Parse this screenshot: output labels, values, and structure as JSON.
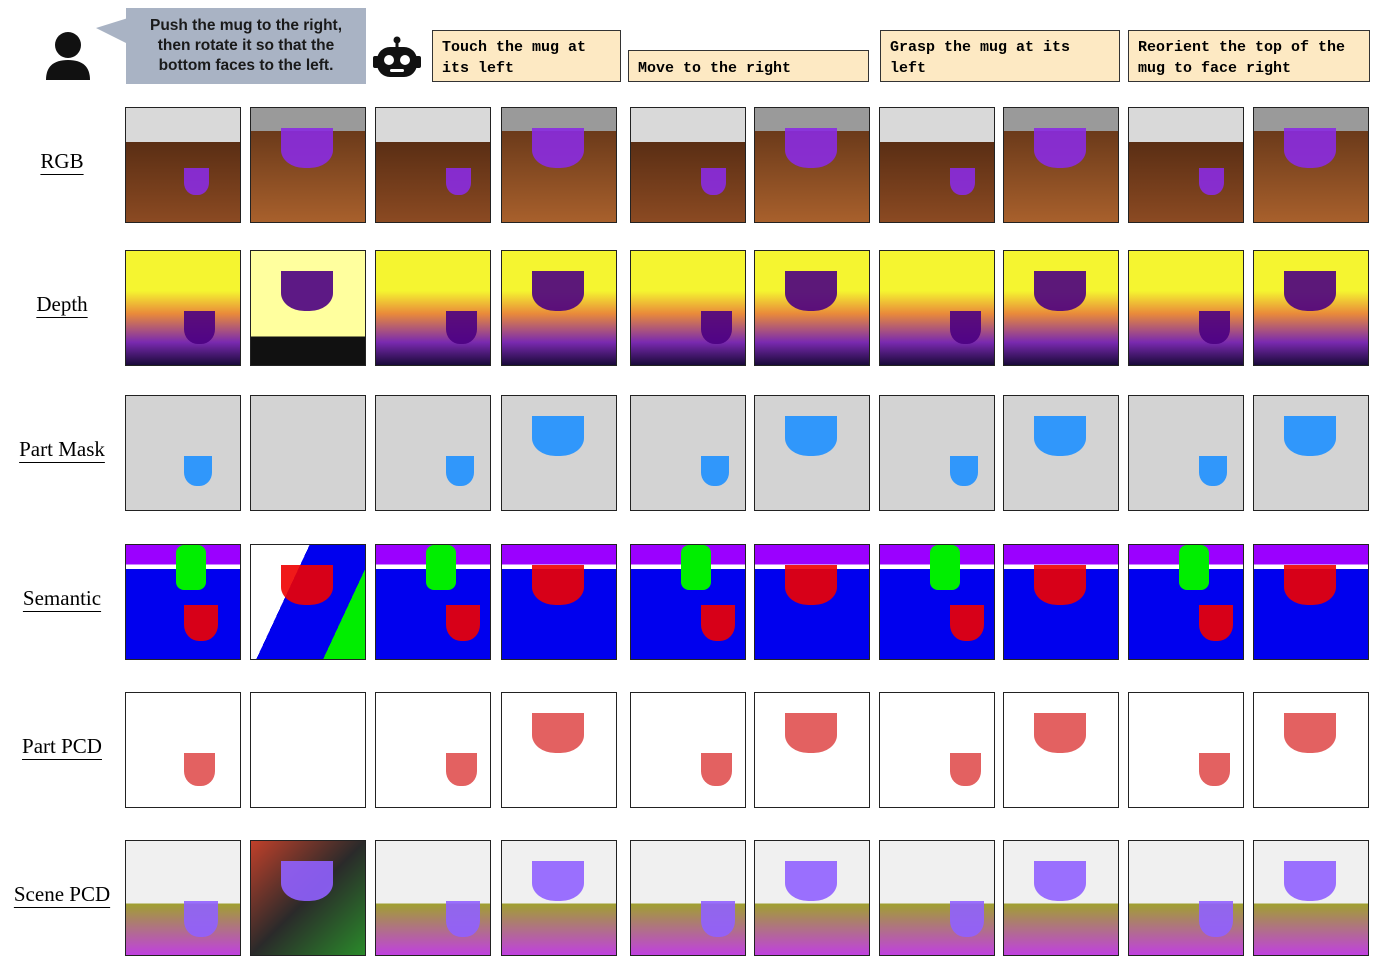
{
  "instruction": "Push the mug to the right, then rotate it so that the bottom faces to the left.",
  "steps": [
    "Touch the mug at its left",
    "Move to the right",
    "Grasp the mug at its left",
    "Reorient the top of the mug to face right"
  ],
  "rows": [
    "RGB",
    "Depth",
    "Part Mask",
    "Semantic",
    "Part PCD",
    "Scene PCD"
  ]
}
